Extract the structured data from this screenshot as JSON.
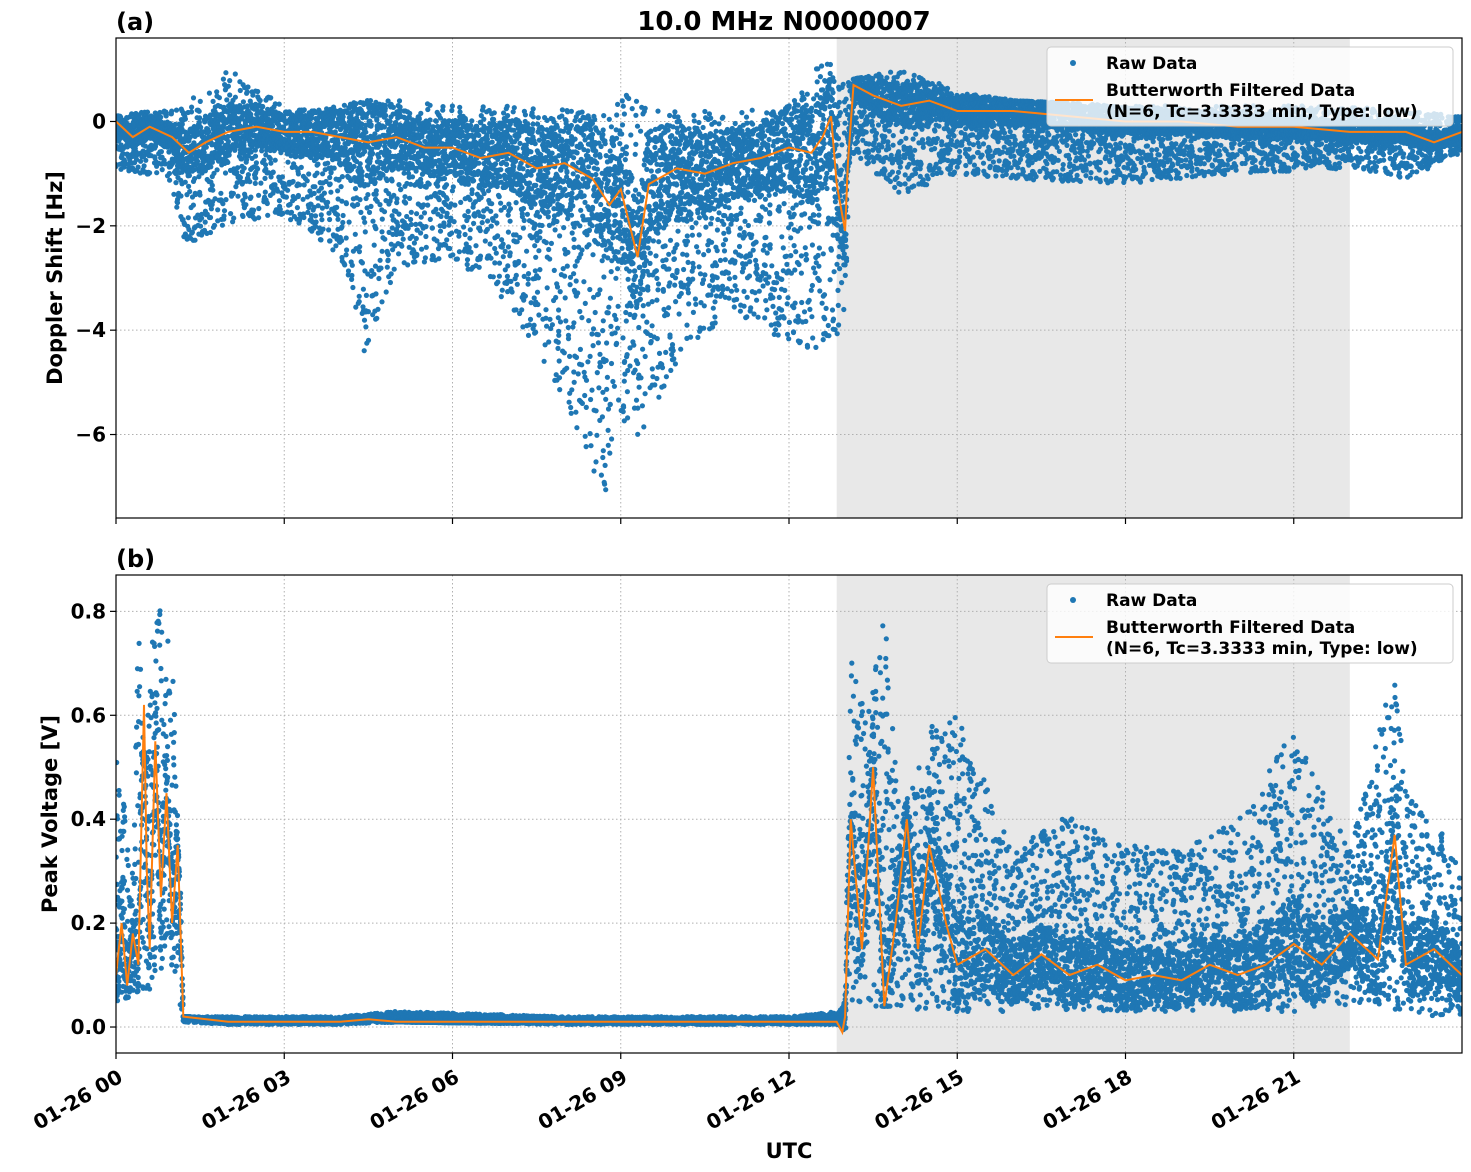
{
  "figure": {
    "title": "10.0 MHz N0000007",
    "xlabel": "UTC",
    "x_ticks": [
      "01-26 00",
      "01-26 03",
      "01-26 06",
      "01-26 09",
      "01-26 12",
      "01-26 15",
      "01-26 18",
      "01-26 21"
    ],
    "shaded_span_hours": [
      12.85,
      22.0
    ],
    "legend": {
      "raw_label": "Raw Data",
      "filtered_label_line1": "Butterworth Filtered Data",
      "filtered_label_line2": "(N=6, Tc=3.3333 min, Type: low)"
    },
    "colors": {
      "raw": "#1f77b4",
      "filtered": "#ff7f0e",
      "shade": "#e8e8e8",
      "grid": "#b0b0b0"
    }
  },
  "chart_data": [
    {
      "type": "scatter",
      "panel_label": "(a)",
      "ylabel": "Doppler Shift [Hz]",
      "xlim_hours": [
        0,
        24
      ],
      "ylim": [
        -7.6,
        1.6
      ],
      "y_ticks": [
        0,
        -2,
        -4,
        -6
      ],
      "y_tick_labels": [
        "0",
        "−2",
        "−4",
        "−6"
      ],
      "grid": true,
      "legend_placement": "top-right",
      "series": [
        {
          "name": "Raw Data",
          "style": "points",
          "envelope_hours": [
            0,
            0.5,
            1,
            1.2,
            2,
            3,
            4,
            4.4,
            5,
            6,
            7,
            8,
            8.7,
            9,
            9.4,
            10,
            11,
            12,
            12.6,
            12.85,
            13,
            13.1,
            14,
            15,
            16,
            18,
            20,
            22,
            23,
            24
          ],
          "envelope_min": [
            -0.9,
            -1.0,
            -1.2,
            -2.4,
            -2.0,
            -1.8,
            -2.6,
            -4.5,
            -2.8,
            -2.6,
            -3.5,
            -5.3,
            -7.2,
            -6.3,
            -5.9,
            -4.6,
            -3.6,
            -4.3,
            -4.4,
            -4.2,
            -3.6,
            -0.6,
            -1.4,
            -1.0,
            -1.1,
            -1.2,
            -1.0,
            -0.9,
            -1.1,
            -0.6
          ],
          "envelope_max": [
            0.1,
            0.2,
            0.2,
            0.3,
            1.0,
            0.3,
            0.3,
            0.4,
            0.4,
            0.3,
            0.3,
            0.3,
            0.3,
            0.6,
            0.3,
            0.2,
            0.2,
            0.3,
            1.2,
            1.1,
            0.8,
            0.8,
            1.0,
            0.6,
            0.4,
            0.3,
            0.3,
            0.3,
            0.2,
            0.1
          ]
        },
        {
          "name": "Butterworth Filtered Data (N=6, Tc=3.3333 min, Type: low)",
          "style": "line",
          "x_hours": [
            0,
            0.3,
            0.6,
            1.0,
            1.3,
            1.6,
            2.0,
            2.5,
            3.0,
            3.5,
            4.0,
            4.5,
            5.0,
            5.5,
            6.0,
            6.5,
            7.0,
            7.5,
            8.0,
            8.5,
            8.8,
            9.0,
            9.3,
            9.5,
            10.0,
            10.5,
            11.0,
            11.5,
            12.0,
            12.4,
            12.6,
            12.75,
            12.85,
            13.0,
            13.05,
            13.15,
            13.5,
            14.0,
            14.5,
            15.0,
            16.0,
            17.0,
            18.0,
            19.0,
            20.0,
            21.0,
            22.0,
            23.0,
            23.5,
            24.0
          ],
          "values": [
            0.0,
            -0.3,
            -0.1,
            -0.3,
            -0.6,
            -0.4,
            -0.2,
            -0.1,
            -0.2,
            -0.2,
            -0.3,
            -0.4,
            -0.3,
            -0.5,
            -0.5,
            -0.7,
            -0.6,
            -0.9,
            -0.8,
            -1.1,
            -1.6,
            -1.3,
            -2.6,
            -1.2,
            -0.9,
            -1.0,
            -0.8,
            -0.7,
            -0.5,
            -0.6,
            -0.3,
            0.1,
            -1.2,
            -2.1,
            -0.8,
            0.7,
            0.5,
            0.3,
            0.4,
            0.2,
            0.2,
            0.1,
            0.0,
            0.0,
            -0.1,
            -0.1,
            -0.2,
            -0.2,
            -0.4,
            -0.2
          ]
        }
      ]
    },
    {
      "type": "scatter",
      "panel_label": "(b)",
      "ylabel": "Peak Voltage [V]",
      "xlim_hours": [
        0,
        24
      ],
      "ylim": [
        -0.05,
        0.87
      ],
      "y_ticks": [
        0.0,
        0.2,
        0.4,
        0.6,
        0.8
      ],
      "y_tick_labels": [
        "0.0",
        "0.2",
        "0.4",
        "0.6",
        "0.8"
      ],
      "grid": true,
      "legend_placement": "top-right",
      "series": [
        {
          "name": "Raw Data",
          "style": "points",
          "envelope_hours": [
            0,
            0.3,
            0.4,
            0.5,
            0.7,
            0.8,
            1.0,
            1.15,
            1.2,
            2,
            4,
            5,
            8,
            12,
            12.9,
            13.0,
            13.1,
            13.4,
            13.7,
            14.0,
            14.5,
            15.0,
            16.0,
            17.0,
            18.0,
            19.0,
            20.0,
            21.0,
            22.0,
            22.8,
            23.0,
            23.5,
            24.0
          ],
          "envelope_min": [
            0.05,
            0.06,
            0.07,
            0.06,
            0.08,
            0.1,
            0.12,
            0.04,
            0.01,
            0.005,
            0.005,
            0.01,
            0.005,
            0.005,
            0.005,
            -0.01,
            0.05,
            0.04,
            0.04,
            0.04,
            0.03,
            0.03,
            0.03,
            0.03,
            0.03,
            0.03,
            0.03,
            0.03,
            0.04,
            0.03,
            0.03,
            0.02,
            0.02
          ],
          "envelope_max": [
            0.55,
            0.3,
            0.79,
            0.5,
            0.83,
            0.8,
            0.73,
            0.3,
            0.02,
            0.02,
            0.02,
            0.03,
            0.02,
            0.02,
            0.03,
            0.05,
            0.73,
            0.6,
            0.81,
            0.4,
            0.58,
            0.6,
            0.34,
            0.41,
            0.35,
            0.34,
            0.4,
            0.57,
            0.34,
            0.69,
            0.45,
            0.4,
            0.3
          ]
        },
        {
          "name": "Butterworth Filtered Data (N=6, Tc=3.3333 min, Type: low)",
          "style": "line",
          "x_hours": [
            0,
            0.1,
            0.2,
            0.3,
            0.4,
            0.5,
            0.55,
            0.6,
            0.7,
            0.8,
            0.9,
            1.0,
            1.1,
            1.2,
            2,
            3,
            4,
            4.5,
            5,
            6,
            8,
            10,
            12,
            12.85,
            12.95,
            13.0,
            13.1,
            13.3,
            13.5,
            13.7,
            13.9,
            14.1,
            14.3,
            14.5,
            14.8,
            15.0,
            15.5,
            16.0,
            16.5,
            17.0,
            17.5,
            18.0,
            18.5,
            19.0,
            19.5,
            20.0,
            20.5,
            21.0,
            21.5,
            22.0,
            22.5,
            22.8,
            23.0,
            23.5,
            24.0
          ],
          "values": [
            0.1,
            0.2,
            0.08,
            0.18,
            0.12,
            0.62,
            0.3,
            0.15,
            0.55,
            0.25,
            0.45,
            0.2,
            0.35,
            0.02,
            0.01,
            0.01,
            0.01,
            0.015,
            0.01,
            0.01,
            0.01,
            0.01,
            0.01,
            0.01,
            -0.01,
            0.02,
            0.4,
            0.15,
            0.5,
            0.04,
            0.2,
            0.4,
            0.15,
            0.35,
            0.2,
            0.12,
            0.15,
            0.1,
            0.14,
            0.1,
            0.12,
            0.09,
            0.1,
            0.09,
            0.12,
            0.1,
            0.12,
            0.16,
            0.12,
            0.18,
            0.13,
            0.37,
            0.12,
            0.15,
            0.1
          ]
        }
      ]
    }
  ]
}
